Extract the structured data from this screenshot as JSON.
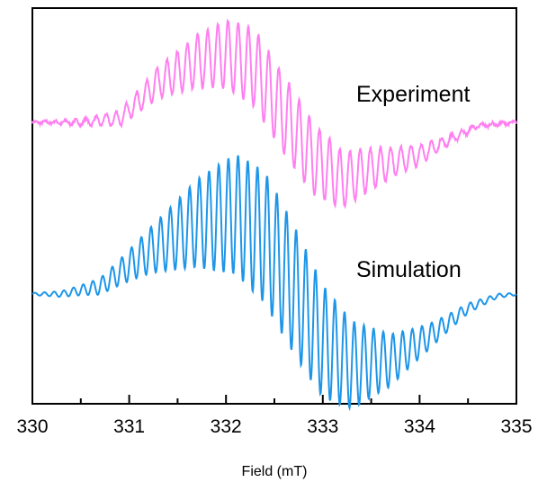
{
  "chart_data": {
    "type": "line",
    "xlabel": "Field (mT)",
    "ylabel": "",
    "xlim": [
      330,
      335
    ],
    "x_ticks": [
      "330",
      "331",
      "332",
      "333",
      "334",
      "335"
    ],
    "y_ticks_visible": false,
    "grid": false,
    "legend": "none",
    "series": [
      {
        "name": "Experiment",
        "color": "#ff7ff0",
        "baseline": 0.0,
        "envelope_points": [
          [
            330.0,
            0.0
          ],
          [
            330.5,
            0.0
          ],
          [
            330.9,
            0.05
          ],
          [
            331.3,
            0.55
          ],
          [
            331.7,
            0.85
          ],
          [
            332.0,
            0.95
          ],
          [
            332.3,
            0.75
          ],
          [
            332.6,
            0.1
          ],
          [
            332.9,
            -0.5
          ],
          [
            333.2,
            -0.8
          ],
          [
            333.6,
            -0.6
          ],
          [
            334.0,
            -0.45
          ],
          [
            334.3,
            -0.25
          ],
          [
            334.6,
            -0.05
          ],
          [
            335.0,
            0.0
          ]
        ],
        "oscillation_period_mT": 0.105,
        "oscillation_amplitude_peak": 0.55,
        "noise": true
      },
      {
        "name": "Simulation",
        "color": "#1e96e8",
        "baseline": 0.0,
        "envelope_points": [
          [
            330.0,
            0.0
          ],
          [
            330.3,
            0.0
          ],
          [
            330.7,
            0.08
          ],
          [
            331.2,
            0.45
          ],
          [
            331.7,
            0.75
          ],
          [
            332.1,
            0.85
          ],
          [
            332.4,
            0.6
          ],
          [
            332.7,
            0.05
          ],
          [
            333.0,
            -0.5
          ],
          [
            333.3,
            -0.75
          ],
          [
            333.7,
            -0.7
          ],
          [
            334.1,
            -0.45
          ],
          [
            334.5,
            -0.15
          ],
          [
            334.8,
            -0.02
          ],
          [
            335.0,
            0.0
          ]
        ],
        "oscillation_period_mT": 0.1,
        "oscillation_amplitude_peak": 0.7,
        "noise": false
      }
    ]
  }
}
